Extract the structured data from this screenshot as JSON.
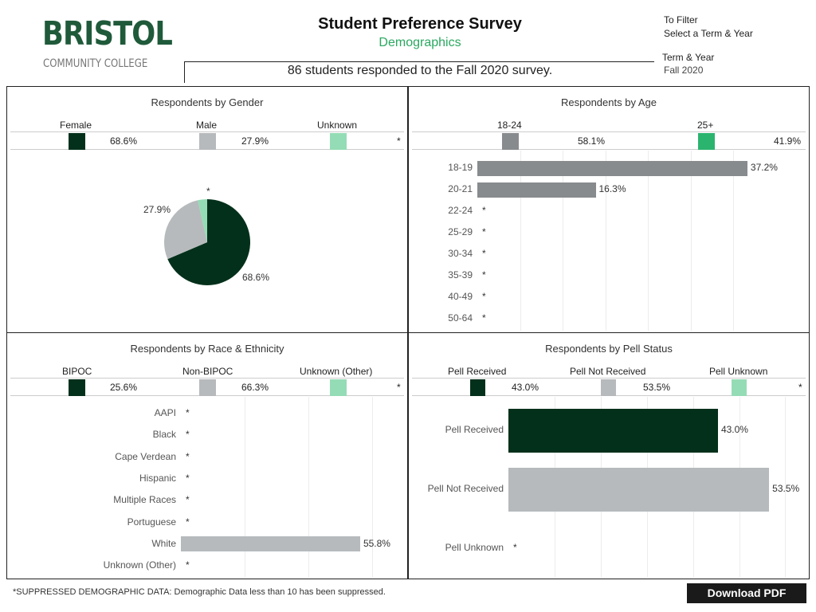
{
  "header": {
    "logo_main": "BRISTOL",
    "logo_sub": "COMMUNITY COLLEGE",
    "title": "Student Preference Survey",
    "subtitle": "Demographics",
    "response_text": "86 students responded to the Fall 2020 survey.",
    "filter_line1": "To Filter",
    "filter_line2": "Select a Term & Year",
    "term_label": "Term & Year",
    "term_value": "Fall 2020"
  },
  "colors": {
    "dark_green": "#03301b",
    "gray": "#b7babc",
    "mid_gray": "#888b8d",
    "light_green": "#94dcb5",
    "bright_green": "#2bb46e"
  },
  "gender": {
    "title": "Respondents by Gender",
    "legend": [
      {
        "label": "Female",
        "value": "68.6%"
      },
      {
        "label": "Male",
        "value": "27.9%"
      },
      {
        "label": "Unknown",
        "value": "*"
      }
    ],
    "pie_labels": {
      "female": "68.6%",
      "male": "27.9%",
      "unknown": "*"
    }
  },
  "age": {
    "title": "Respondents by Age",
    "legend": [
      {
        "label": "18-24",
        "value": "58.1%"
      },
      {
        "label": "25+",
        "value": "41.9%"
      }
    ],
    "rows": [
      {
        "label": "18-19",
        "value": "37.2%"
      },
      {
        "label": "20-21",
        "value": "16.3%"
      },
      {
        "label": "22-24",
        "value": "*"
      },
      {
        "label": "25-29",
        "value": "*"
      },
      {
        "label": "30-34",
        "value": "*"
      },
      {
        "label": "35-39",
        "value": "*"
      },
      {
        "label": "40-49",
        "value": "*"
      },
      {
        "label": "50-64",
        "value": "*"
      }
    ]
  },
  "race": {
    "title": "Respondents by Race & Ethnicity",
    "legend": [
      {
        "label": "BIPOC",
        "value": "25.6%"
      },
      {
        "label": "Non-BIPOC",
        "value": "66.3%"
      },
      {
        "label": "Unknown (Other)",
        "value": "*"
      }
    ],
    "rows": [
      {
        "label": "AAPI",
        "value": "*"
      },
      {
        "label": "Black",
        "value": "*"
      },
      {
        "label": "Cape Verdean",
        "value": "*"
      },
      {
        "label": "Hispanic",
        "value": "*"
      },
      {
        "label": "Multiple Races",
        "value": "*"
      },
      {
        "label": "Portuguese",
        "value": "*"
      },
      {
        "label": "White",
        "value": "55.8%"
      },
      {
        "label": "Unknown (Other)",
        "value": "*"
      }
    ]
  },
  "pell": {
    "title": "Respondents by Pell Status",
    "legend": [
      {
        "label": "Pell Received",
        "value": "43.0%"
      },
      {
        "label": "Pell Not Received",
        "value": "53.5%"
      },
      {
        "label": "Pell Unknown",
        "value": "*"
      }
    ],
    "rows": [
      {
        "label": "Pell Received",
        "value": "43.0%"
      },
      {
        "label": "Pell Not Received",
        "value": "53.5%"
      },
      {
        "label": "Pell Unknown",
        "value": "*"
      }
    ]
  },
  "chart_data": [
    {
      "type": "pie",
      "title": "Respondents by Gender",
      "categories": [
        "Female",
        "Male",
        "Unknown"
      ],
      "values": [
        68.6,
        27.9,
        3.5
      ]
    },
    {
      "type": "bar",
      "title": "Respondents by Age",
      "categories": [
        "18-19",
        "20-21",
        "22-24",
        "25-29",
        "30-34",
        "35-39",
        "40-49",
        "50-64"
      ],
      "values": [
        37.2,
        16.3,
        null,
        null,
        null,
        null,
        null,
        null
      ]
    },
    {
      "type": "bar",
      "title": "Respondents by Race & Ethnicity",
      "categories": [
        "AAPI",
        "Black",
        "Cape Verdean",
        "Hispanic",
        "Multiple Races",
        "Portuguese",
        "White",
        "Unknown (Other)"
      ],
      "values": [
        null,
        null,
        null,
        null,
        null,
        null,
        55.8,
        null
      ]
    },
    {
      "type": "bar",
      "title": "Respondents by Pell Status",
      "categories": [
        "Pell Received",
        "Pell Not Received",
        "Pell Unknown"
      ],
      "values": [
        43.0,
        53.5,
        null
      ]
    }
  ],
  "footer": {
    "note": "*SUPPRESSED DEMOGRAPHIC DATA: Demographic Data less than 10 has been suppressed.",
    "download": "Download PDF"
  }
}
